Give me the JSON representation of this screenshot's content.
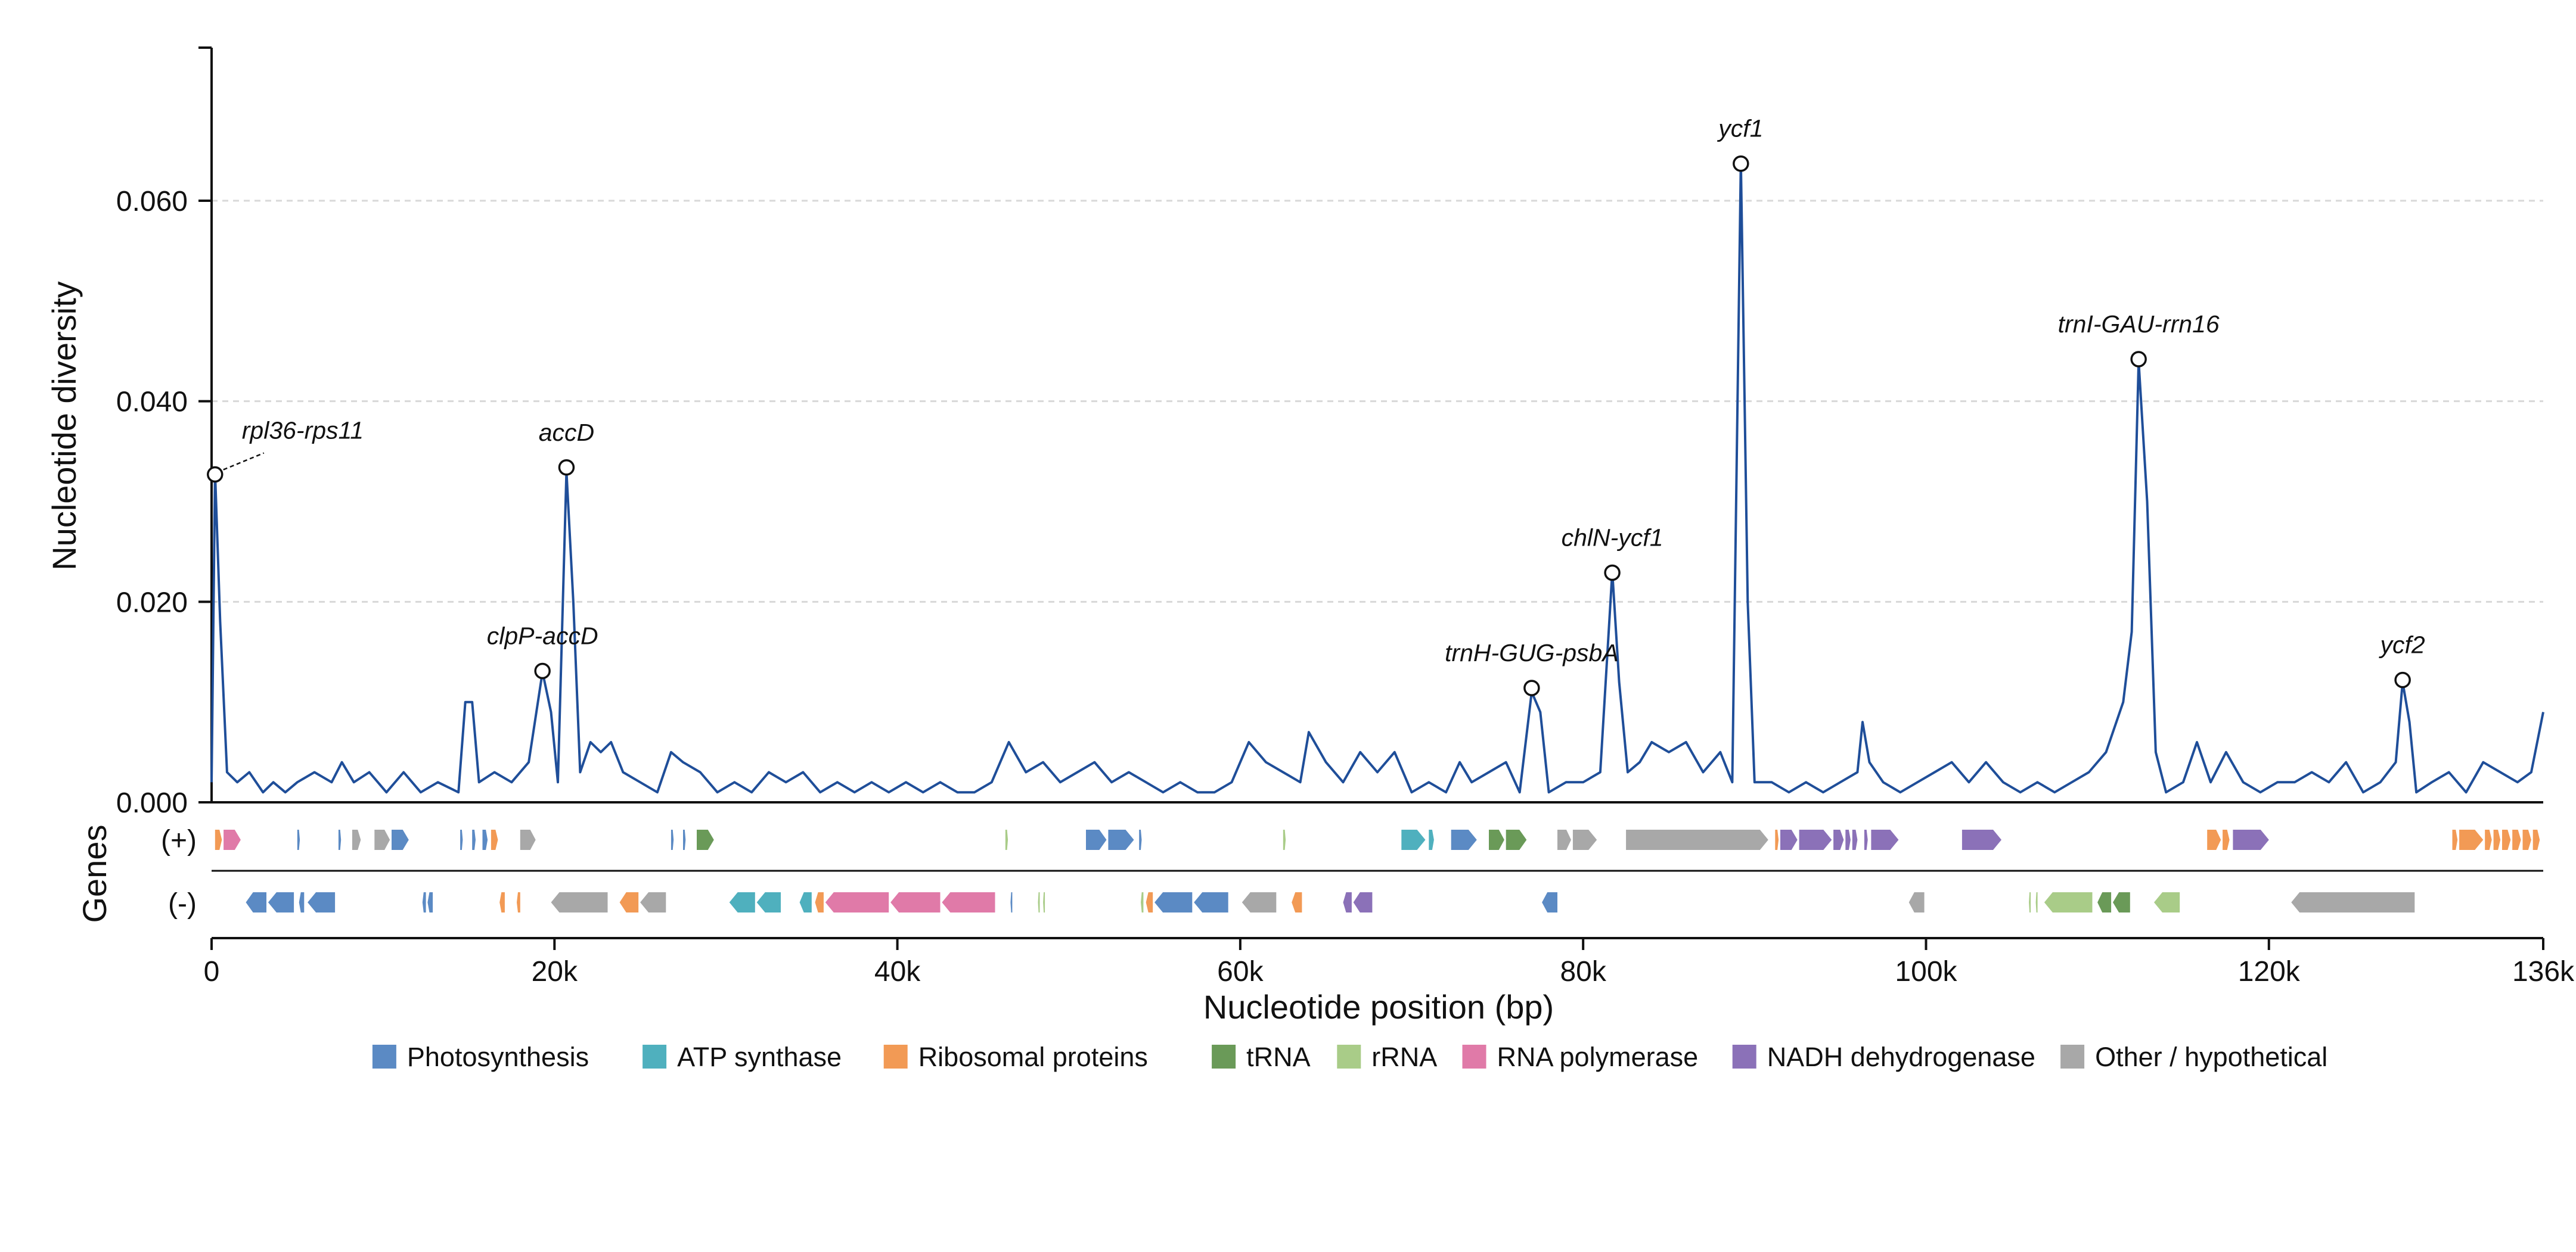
{
  "chart_data": {
    "type": "line",
    "xlabel": "Nucleotide position (bp)",
    "ylabel": "Nucleotide diversity",
    "gene_track_label": "Genes",
    "strand_labels": [
      "(+)",
      "(-)"
    ],
    "xlim": [
      0,
      136000
    ],
    "ylim": [
      0,
      0.075
    ],
    "x_ticks": [
      0,
      20000,
      40000,
      60000,
      80000,
      100000,
      120000,
      136000
    ],
    "x_tick_labels": [
      "0",
      "20k",
      "40k",
      "60k",
      "80k",
      "100k",
      "120k",
      "136k"
    ],
    "y_ticks": [
      0,
      0.02,
      0.04,
      0.06
    ],
    "y_tick_labels": [
      "0.000",
      "0.020",
      "0.040",
      "0.060"
    ],
    "grid": "horizontal dashed",
    "line_color": "#1f4e99",
    "line_points": [
      [
        0,
        0.002
      ],
      [
        200,
        0.033
      ],
      [
        500,
        0.018
      ],
      [
        900,
        0.003
      ],
      [
        1500,
        0.002
      ],
      [
        2200,
        0.003
      ],
      [
        3000,
        0.001
      ],
      [
        3600,
        0.002
      ],
      [
        4300,
        0.001
      ],
      [
        5000,
        0.002
      ],
      [
        6000,
        0.003
      ],
      [
        7000,
        0.002
      ],
      [
        7600,
        0.004
      ],
      [
        8300,
        0.002
      ],
      [
        9200,
        0.003
      ],
      [
        10200,
        0.001
      ],
      [
        11200,
        0.003
      ],
      [
        12200,
        0.001
      ],
      [
        13200,
        0.002
      ],
      [
        14400,
        0.001
      ],
      [
        14800,
        0.01
      ],
      [
        15200,
        0.01
      ],
      [
        15600,
        0.002
      ],
      [
        16500,
        0.003
      ],
      [
        17500,
        0.002
      ],
      [
        18500,
        0.004
      ],
      [
        19300,
        0.013
      ],
      [
        19800,
        0.009
      ],
      [
        20200,
        0.002
      ],
      [
        20700,
        0.033
      ],
      [
        21100,
        0.02
      ],
      [
        21500,
        0.003
      ],
      [
        22100,
        0.006
      ],
      [
        22700,
        0.005
      ],
      [
        23300,
        0.006
      ],
      [
        24000,
        0.003
      ],
      [
        25000,
        0.002
      ],
      [
        26000,
        0.001
      ],
      [
        26800,
        0.005
      ],
      [
        27500,
        0.004
      ],
      [
        28500,
        0.003
      ],
      [
        29500,
        0.001
      ],
      [
        30500,
        0.002
      ],
      [
        31500,
        0.001
      ],
      [
        32500,
        0.003
      ],
      [
        33500,
        0.002
      ],
      [
        34500,
        0.003
      ],
      [
        35500,
        0.001
      ],
      [
        36500,
        0.002
      ],
      [
        37500,
        0.001
      ],
      [
        38500,
        0.002
      ],
      [
        39500,
        0.001
      ],
      [
        40500,
        0.002
      ],
      [
        41500,
        0.001
      ],
      [
        42500,
        0.002
      ],
      [
        43500,
        0.001
      ],
      [
        44500,
        0.001
      ],
      [
        45500,
        0.002
      ],
      [
        46500,
        0.006
      ],
      [
        47500,
        0.003
      ],
      [
        48500,
        0.004
      ],
      [
        49500,
        0.002
      ],
      [
        50500,
        0.003
      ],
      [
        51500,
        0.004
      ],
      [
        52500,
        0.002
      ],
      [
        53500,
        0.003
      ],
      [
        54500,
        0.002
      ],
      [
        55500,
        0.001
      ],
      [
        56500,
        0.002
      ],
      [
        57500,
        0.001
      ],
      [
        58500,
        0.001
      ],
      [
        59500,
        0.002
      ],
      [
        60500,
        0.006
      ],
      [
        61500,
        0.004
      ],
      [
        62500,
        0.003
      ],
      [
        63500,
        0.002
      ],
      [
        64000,
        0.007
      ],
      [
        65000,
        0.004
      ],
      [
        66000,
        0.002
      ],
      [
        67000,
        0.005
      ],
      [
        68000,
        0.003
      ],
      [
        69000,
        0.005
      ],
      [
        70000,
        0.001
      ],
      [
        71000,
        0.002
      ],
      [
        72000,
        0.001
      ],
      [
        72800,
        0.004
      ],
      [
        73500,
        0.002
      ],
      [
        74500,
        0.003
      ],
      [
        75500,
        0.004
      ],
      [
        76300,
        0.001
      ],
      [
        77000,
        0.011
      ],
      [
        77500,
        0.009
      ],
      [
        78000,
        0.001
      ],
      [
        79000,
        0.002
      ],
      [
        80000,
        0.002
      ],
      [
        81000,
        0.003
      ],
      [
        81700,
        0.023
      ],
      [
        82100,
        0.012
      ],
      [
        82600,
        0.003
      ],
      [
        83300,
        0.004
      ],
      [
        84000,
        0.006
      ],
      [
        85000,
        0.005
      ],
      [
        86000,
        0.006
      ],
      [
        87000,
        0.003
      ],
      [
        88000,
        0.005
      ],
      [
        88700,
        0.002
      ],
      [
        89200,
        0.064
      ],
      [
        89600,
        0.02
      ],
      [
        90000,
        0.002
      ],
      [
        91000,
        0.002
      ],
      [
        92000,
        0.001
      ],
      [
        93000,
        0.002
      ],
      [
        94000,
        0.001
      ],
      [
        95000,
        0.002
      ],
      [
        96000,
        0.003
      ],
      [
        96300,
        0.008
      ],
      [
        96700,
        0.004
      ],
      [
        97500,
        0.002
      ],
      [
        98500,
        0.001
      ],
      [
        99500,
        0.002
      ],
      [
        100500,
        0.003
      ],
      [
        101500,
        0.004
      ],
      [
        102500,
        0.002
      ],
      [
        103500,
        0.004
      ],
      [
        104500,
        0.002
      ],
      [
        105500,
        0.001
      ],
      [
        106500,
        0.002
      ],
      [
        107500,
        0.001
      ],
      [
        108500,
        0.002
      ],
      [
        109500,
        0.003
      ],
      [
        110500,
        0.005
      ],
      [
        111500,
        0.01
      ],
      [
        112000,
        0.017
      ],
      [
        112400,
        0.044
      ],
      [
        112900,
        0.03
      ],
      [
        113400,
        0.005
      ],
      [
        114000,
        0.001
      ],
      [
        115000,
        0.002
      ],
      [
        115800,
        0.006
      ],
      [
        116600,
        0.002
      ],
      [
        117500,
        0.005
      ],
      [
        118500,
        0.002
      ],
      [
        119500,
        0.001
      ],
      [
        120500,
        0.002
      ],
      [
        121500,
        0.002
      ],
      [
        122500,
        0.003
      ],
      [
        123500,
        0.002
      ],
      [
        124500,
        0.004
      ],
      [
        125500,
        0.001
      ],
      [
        126500,
        0.002
      ],
      [
        127400,
        0.004
      ],
      [
        127800,
        0.012
      ],
      [
        128200,
        0.008
      ],
      [
        128600,
        0.001
      ],
      [
        129500,
        0.002
      ],
      [
        130500,
        0.003
      ],
      [
        131500,
        0.001
      ],
      [
        132500,
        0.004
      ],
      [
        133500,
        0.003
      ],
      [
        134500,
        0.002
      ],
      [
        135300,
        0.003
      ],
      [
        136000,
        0.009
      ]
    ],
    "peaks": [
      {
        "label": "rpl36-rps11",
        "x": 200,
        "y": 0.0327,
        "leader": true
      },
      {
        "label": "clpP-accD",
        "x": 19300,
        "y": 0.0131
      },
      {
        "label": "accD",
        "x": 20700,
        "y": 0.0334
      },
      {
        "label": "trnH-GUG-psbA",
        "x": 77000,
        "y": 0.0114
      },
      {
        "label": "chlN-ycf1",
        "x": 81700,
        "y": 0.0229
      },
      {
        "label": "ycf1",
        "x": 89200,
        "y": 0.0637
      },
      {
        "label": "trnI-GAU-rrn16",
        "x": 112400,
        "y": 0.0442
      },
      {
        "label": "ycf2",
        "x": 127800,
        "y": 0.0122
      }
    ],
    "categories": [
      {
        "key": "ps",
        "name": "Photosynthesis",
        "color": "#5b8ac4"
      },
      {
        "key": "atp",
        "name": "ATP synthase",
        "color": "#4fb0be"
      },
      {
        "key": "rib",
        "name": "Ribosomal proteins",
        "color": "#f29a55"
      },
      {
        "key": "trna",
        "name": "tRNA",
        "color": "#6a9a58"
      },
      {
        "key": "rrna",
        "name": "rRNA",
        "color": "#a9cc88"
      },
      {
        "key": "rpo",
        "name": "RNA polymerase",
        "color": "#e07aa8"
      },
      {
        "key": "ndh",
        "name": "NADH dehydrogenase",
        "color": "#8b71b8"
      },
      {
        "key": "oth",
        "name": "Other / hypothetical",
        "color": "#a8a8a8"
      }
    ],
    "genes": [
      {
        "s": "+",
        "a": 200,
        "b": 600,
        "c": "rib"
      },
      {
        "s": "+",
        "a": 700,
        "b": 1700,
        "c": "rpo"
      },
      {
        "s": "+",
        "a": 5000,
        "b": 5150,
        "c": "ps"
      },
      {
        "s": "+",
        "a": 7400,
        "b": 7550,
        "c": "ps"
      },
      {
        "s": "+",
        "a": 8200,
        "b": 8700,
        "c": "oth"
      },
      {
        "s": "+",
        "a": 9500,
        "b": 10400,
        "c": "oth"
      },
      {
        "s": "+",
        "a": 10500,
        "b": 11500,
        "c": "ps"
      },
      {
        "s": "+",
        "a": 14500,
        "b": 14650,
        "c": "ps"
      },
      {
        "s": "+",
        "a": 15200,
        "b": 15400,
        "c": "ps"
      },
      {
        "s": "+",
        "a": 15800,
        "b": 16100,
        "c": "ps"
      },
      {
        "s": "+",
        "a": 16300,
        "b": 16700,
        "c": "rib"
      },
      {
        "s": "+",
        "a": 18000,
        "b": 18900,
        "c": "oth"
      },
      {
        "s": "+",
        "a": 26800,
        "b": 26950,
        "c": "ps"
      },
      {
        "s": "+",
        "a": 27500,
        "b": 27650,
        "c": "ps"
      },
      {
        "s": "+",
        "a": 28300,
        "b": 29300,
        "c": "trna"
      },
      {
        "s": "+",
        "a": 46300,
        "b": 46450,
        "c": "rrna"
      },
      {
        "s": "+",
        "a": 51000,
        "b": 52200,
        "c": "ps"
      },
      {
        "s": "+",
        "a": 52300,
        "b": 53800,
        "c": "ps"
      },
      {
        "s": "+",
        "a": 54100,
        "b": 54250,
        "c": "ps"
      },
      {
        "s": "+",
        "a": 62500,
        "b": 62650,
        "c": "rrna"
      },
      {
        "s": "+",
        "a": 69400,
        "b": 70800,
        "c": "atp"
      },
      {
        "s": "+",
        "a": 71000,
        "b": 71300,
        "c": "atp"
      },
      {
        "s": "+",
        "a": 72300,
        "b": 73800,
        "c": "ps"
      },
      {
        "s": "+",
        "a": 74500,
        "b": 75400,
        "c": "trna"
      },
      {
        "s": "+",
        "a": 75500,
        "b": 76700,
        "c": "trna"
      },
      {
        "s": "+",
        "a": 78500,
        "b": 79300,
        "c": "oth"
      },
      {
        "s": "+",
        "a": 79400,
        "b": 80800,
        "c": "oth"
      },
      {
        "s": "+",
        "a": 82500,
        "b": 90800,
        "c": "oth"
      },
      {
        "s": "+",
        "a": 91200,
        "b": 91400,
        "c": "rib"
      },
      {
        "s": "+",
        "a": 91500,
        "b": 92500,
        "c": "ndh"
      },
      {
        "s": "+",
        "a": 92600,
        "b": 94500,
        "c": "ndh"
      },
      {
        "s": "+",
        "a": 94600,
        "b": 95200,
        "c": "ndh"
      },
      {
        "s": "+",
        "a": 95300,
        "b": 95600,
        "c": "ndh"
      },
      {
        "s": "+",
        "a": 95700,
        "b": 96000,
        "c": "ndh"
      },
      {
        "s": "+",
        "a": 96400,
        "b": 96600,
        "c": "ndh"
      },
      {
        "s": "+",
        "a": 96800,
        "b": 98400,
        "c": "ndh"
      },
      {
        "s": "+",
        "a": 102100,
        "b": 104400,
        "c": "ndh"
      },
      {
        "s": "+",
        "a": 116400,
        "b": 117200,
        "c": "rib"
      },
      {
        "s": "+",
        "a": 117300,
        "b": 117700,
        "c": "rib"
      },
      {
        "s": "+",
        "a": 117900,
        "b": 120000,
        "c": "ndh"
      },
      {
        "s": "+",
        "a": 130700,
        "b": 131000,
        "c": "rib"
      },
      {
        "s": "+",
        "a": 131100,
        "b": 132500,
        "c": "rib"
      },
      {
        "s": "+",
        "a": 132600,
        "b": 133000,
        "c": "rib"
      },
      {
        "s": "+",
        "a": 133100,
        "b": 133500,
        "c": "rib"
      },
      {
        "s": "+",
        "a": 133600,
        "b": 134100,
        "c": "rib"
      },
      {
        "s": "+",
        "a": 134200,
        "b": 134700,
        "c": "rib"
      },
      {
        "s": "+",
        "a": 134800,
        "b": 135300,
        "c": "rib"
      },
      {
        "s": "+",
        "a": 135400,
        "b": 135800,
        "c": "rib"
      },
      {
        "s": "-",
        "a": 2000,
        "b": 3200,
        "c": "ps"
      },
      {
        "s": "-",
        "a": 3300,
        "b": 4800,
        "c": "ps"
      },
      {
        "s": "-",
        "a": 5100,
        "b": 5400,
        "c": "ps"
      },
      {
        "s": "-",
        "a": 5600,
        "b": 7200,
        "c": "ps"
      },
      {
        "s": "-",
        "a": 12300,
        "b": 12500,
        "c": "ps"
      },
      {
        "s": "-",
        "a": 12600,
        "b": 12900,
        "c": "ps"
      },
      {
        "s": "-",
        "a": 16800,
        "b": 17100,
        "c": "rib"
      },
      {
        "s": "-",
        "a": 17800,
        "b": 18000,
        "c": "rib"
      },
      {
        "s": "-",
        "a": 19800,
        "b": 23100,
        "c": "oth"
      },
      {
        "s": "-",
        "a": 23800,
        "b": 24900,
        "c": "rib"
      },
      {
        "s": "-",
        "a": 25000,
        "b": 26500,
        "c": "oth"
      },
      {
        "s": "-",
        "a": 30200,
        "b": 31700,
        "c": "atp"
      },
      {
        "s": "-",
        "a": 31800,
        "b": 33200,
        "c": "atp"
      },
      {
        "s": "-",
        "a": 34300,
        "b": 35000,
        "c": "atp"
      },
      {
        "s": "-",
        "a": 35200,
        "b": 35700,
        "c": "rib"
      },
      {
        "s": "-",
        "a": 35800,
        "b": 39500,
        "c": "rpo"
      },
      {
        "s": "-",
        "a": 39600,
        "b": 42500,
        "c": "rpo"
      },
      {
        "s": "-",
        "a": 42600,
        "b": 45700,
        "c": "rpo"
      },
      {
        "s": "-",
        "a": 46600,
        "b": 46700,
        "c": "ps"
      },
      {
        "s": "-",
        "a": 48200,
        "b": 48300,
        "c": "rrna"
      },
      {
        "s": "-",
        "a": 48500,
        "b": 48600,
        "c": "rrna"
      },
      {
        "s": "-",
        "a": 54200,
        "b": 54350,
        "c": "rrna"
      },
      {
        "s": "-",
        "a": 54500,
        "b": 54900,
        "c": "rib"
      },
      {
        "s": "-",
        "a": 55000,
        "b": 57200,
        "c": "ps"
      },
      {
        "s": "-",
        "a": 57300,
        "b": 59300,
        "c": "ps"
      },
      {
        "s": "-",
        "a": 60100,
        "b": 62100,
        "c": "oth"
      },
      {
        "s": "-",
        "a": 63000,
        "b": 63600,
        "c": "rib"
      },
      {
        "s": "-",
        "a": 66000,
        "b": 66500,
        "c": "ndh"
      },
      {
        "s": "-",
        "a": 66600,
        "b": 67700,
        "c": "ndh"
      },
      {
        "s": "-",
        "a": 77600,
        "b": 78500,
        "c": "ps"
      },
      {
        "s": "-",
        "a": 99000,
        "b": 99900,
        "c": "oth"
      },
      {
        "s": "-",
        "a": 106000,
        "b": 106100,
        "c": "rrna"
      },
      {
        "s": "-",
        "a": 106400,
        "b": 106500,
        "c": "rrna"
      },
      {
        "s": "-",
        "a": 106900,
        "b": 109700,
        "c": "rrna"
      },
      {
        "s": "-",
        "a": 110000,
        "b": 110800,
        "c": "trna"
      },
      {
        "s": "-",
        "a": 110900,
        "b": 111900,
        "c": "trna"
      },
      {
        "s": "-",
        "a": 113300,
        "b": 114800,
        "c": "rrna"
      },
      {
        "s": "-",
        "a": 121300,
        "b": 128500,
        "c": "oth"
      }
    ]
  }
}
